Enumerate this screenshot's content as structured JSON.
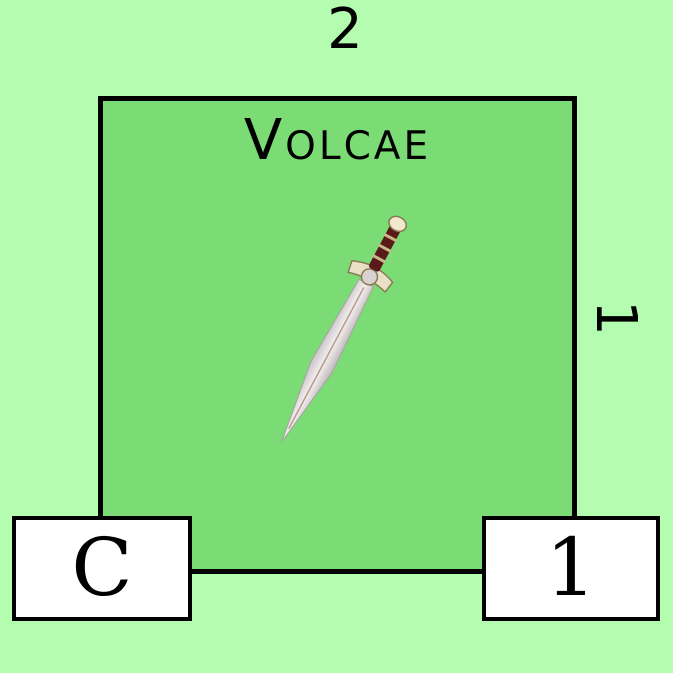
{
  "counter": {
    "name": "Volcae",
    "top_value": "2",
    "side_value": "1",
    "left_box": "C",
    "right_box": "1",
    "icon": "sword-icon",
    "colors": {
      "background": "#b4fcb0",
      "card": "#7bdc75",
      "border": "#000000",
      "box": "#ffffff"
    }
  }
}
